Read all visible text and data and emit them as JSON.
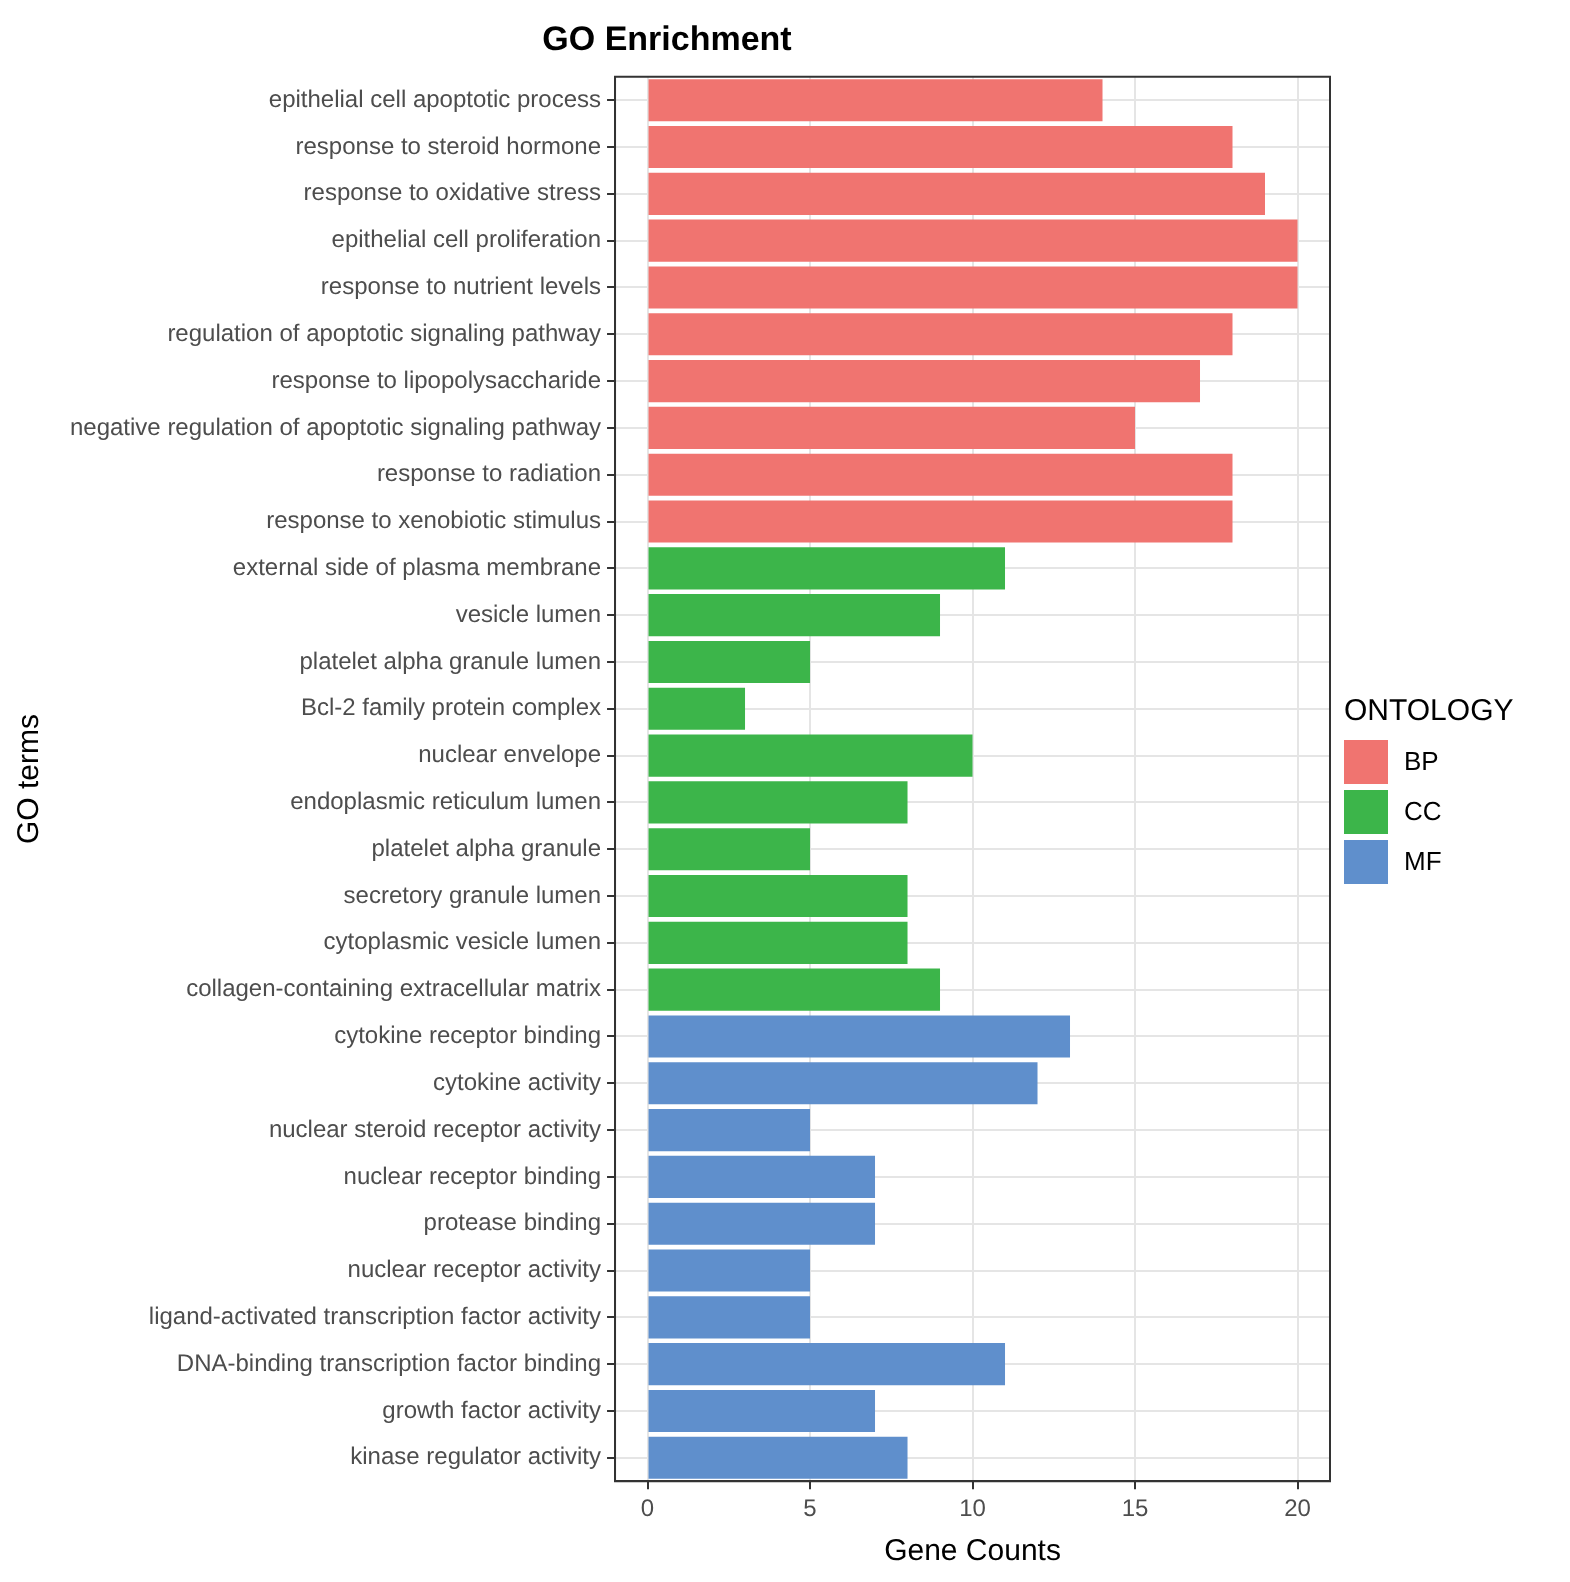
{
  "chart_data": {
    "type": "bar",
    "orientation": "horizontal",
    "title": "GO Enrichment",
    "xlabel": "Gene Counts",
    "ylabel": "GO terms",
    "legend_title": "ONTOLOGY",
    "legend": "right",
    "grid": true,
    "categories": [
      "epithelial cell apoptotic process",
      "response to steroid hormone",
      "response to oxidative stress",
      "epithelial cell proliferation",
      "response to nutrient levels",
      "regulation of apoptotic signaling pathway",
      "response to lipopolysaccharide",
      "negative regulation of apoptotic signaling pathway",
      "response to radiation",
      "response to xenobiotic stimulus",
      "external side of plasma membrane",
      "vesicle lumen",
      "platelet alpha granule lumen",
      "Bcl-2 family protein complex",
      "nuclear envelope",
      "endoplasmic reticulum lumen",
      "platelet alpha granule",
      "secretory granule lumen",
      "cytoplasmic vesicle lumen",
      "collagen-containing extracellular matrix",
      "cytokine receptor binding",
      "cytokine activity",
      "nuclear steroid receptor activity",
      "nuclear receptor binding",
      "protease binding",
      "nuclear receptor activity",
      "ligand-activated transcription factor activity",
      "DNA-binding transcription factor binding",
      "growth factor activity",
      "kinase regulator activity"
    ],
    "series": [
      {
        "name": "BP",
        "color": "#f07470",
        "values": [
          14,
          18,
          19,
          20,
          20,
          18,
          17,
          15,
          18,
          18,
          null,
          null,
          null,
          null,
          null,
          null,
          null,
          null,
          null,
          null,
          null,
          null,
          null,
          null,
          null,
          null,
          null,
          null,
          null,
          null
        ]
      },
      {
        "name": "CC",
        "color": "#3cb54a",
        "values": [
          null,
          null,
          null,
          null,
          null,
          null,
          null,
          null,
          null,
          null,
          11,
          9,
          5,
          3,
          10,
          8,
          5,
          8,
          8,
          9,
          null,
          null,
          null,
          null,
          null,
          null,
          null,
          null,
          null,
          null
        ]
      },
      {
        "name": "MF",
        "color": "#5f8fcc",
        "values": [
          null,
          null,
          null,
          null,
          null,
          null,
          null,
          null,
          null,
          null,
          null,
          null,
          null,
          null,
          null,
          null,
          null,
          null,
          null,
          null,
          13,
          12,
          5,
          7,
          7,
          5,
          5,
          11,
          7,
          8
        ]
      }
    ],
    "xlim": [
      -1,
      21
    ],
    "xticks": [
      0,
      5,
      10,
      15,
      20
    ]
  }
}
